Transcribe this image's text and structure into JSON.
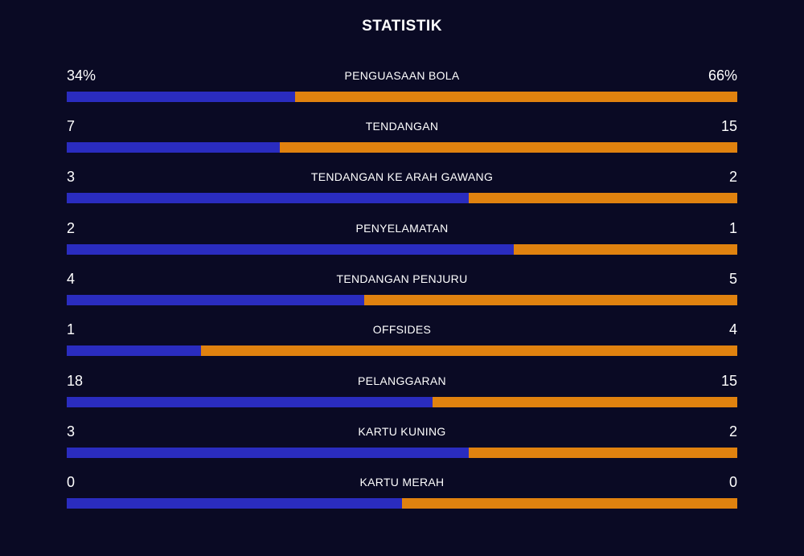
{
  "title": "STATISTIK",
  "colors": {
    "background": "#0a0a24",
    "home_bar": "#2a2cbf",
    "away_bar": "#e0820f",
    "text": "#ffffff"
  },
  "stats": [
    {
      "label": "PENGUASAAN BOLA",
      "left": "34%",
      "right": "66%",
      "left_share": 0.34
    },
    {
      "label": "TENDANGAN",
      "left": "7",
      "right": "15",
      "left_share": 0.318
    },
    {
      "label": "TENDANGAN KE ARAH GAWANG",
      "left": "3",
      "right": "2",
      "left_share": 0.6
    },
    {
      "label": "PENYELAMATAN",
      "left": "2",
      "right": "1",
      "left_share": 0.667
    },
    {
      "label": "TENDANGAN PENJURU",
      "left": "4",
      "right": "5",
      "left_share": 0.444
    },
    {
      "label": "OFFSIDES",
      "left": "1",
      "right": "4",
      "left_share": 0.2
    },
    {
      "label": "PELANGGARAN",
      "left": "18",
      "right": "15",
      "left_share": 0.545
    },
    {
      "label": "KARTU KUNING",
      "left": "3",
      "right": "2",
      "left_share": 0.6
    },
    {
      "label": "KARTU MERAH",
      "left": "0",
      "right": "0",
      "left_share": 0.5
    }
  ]
}
